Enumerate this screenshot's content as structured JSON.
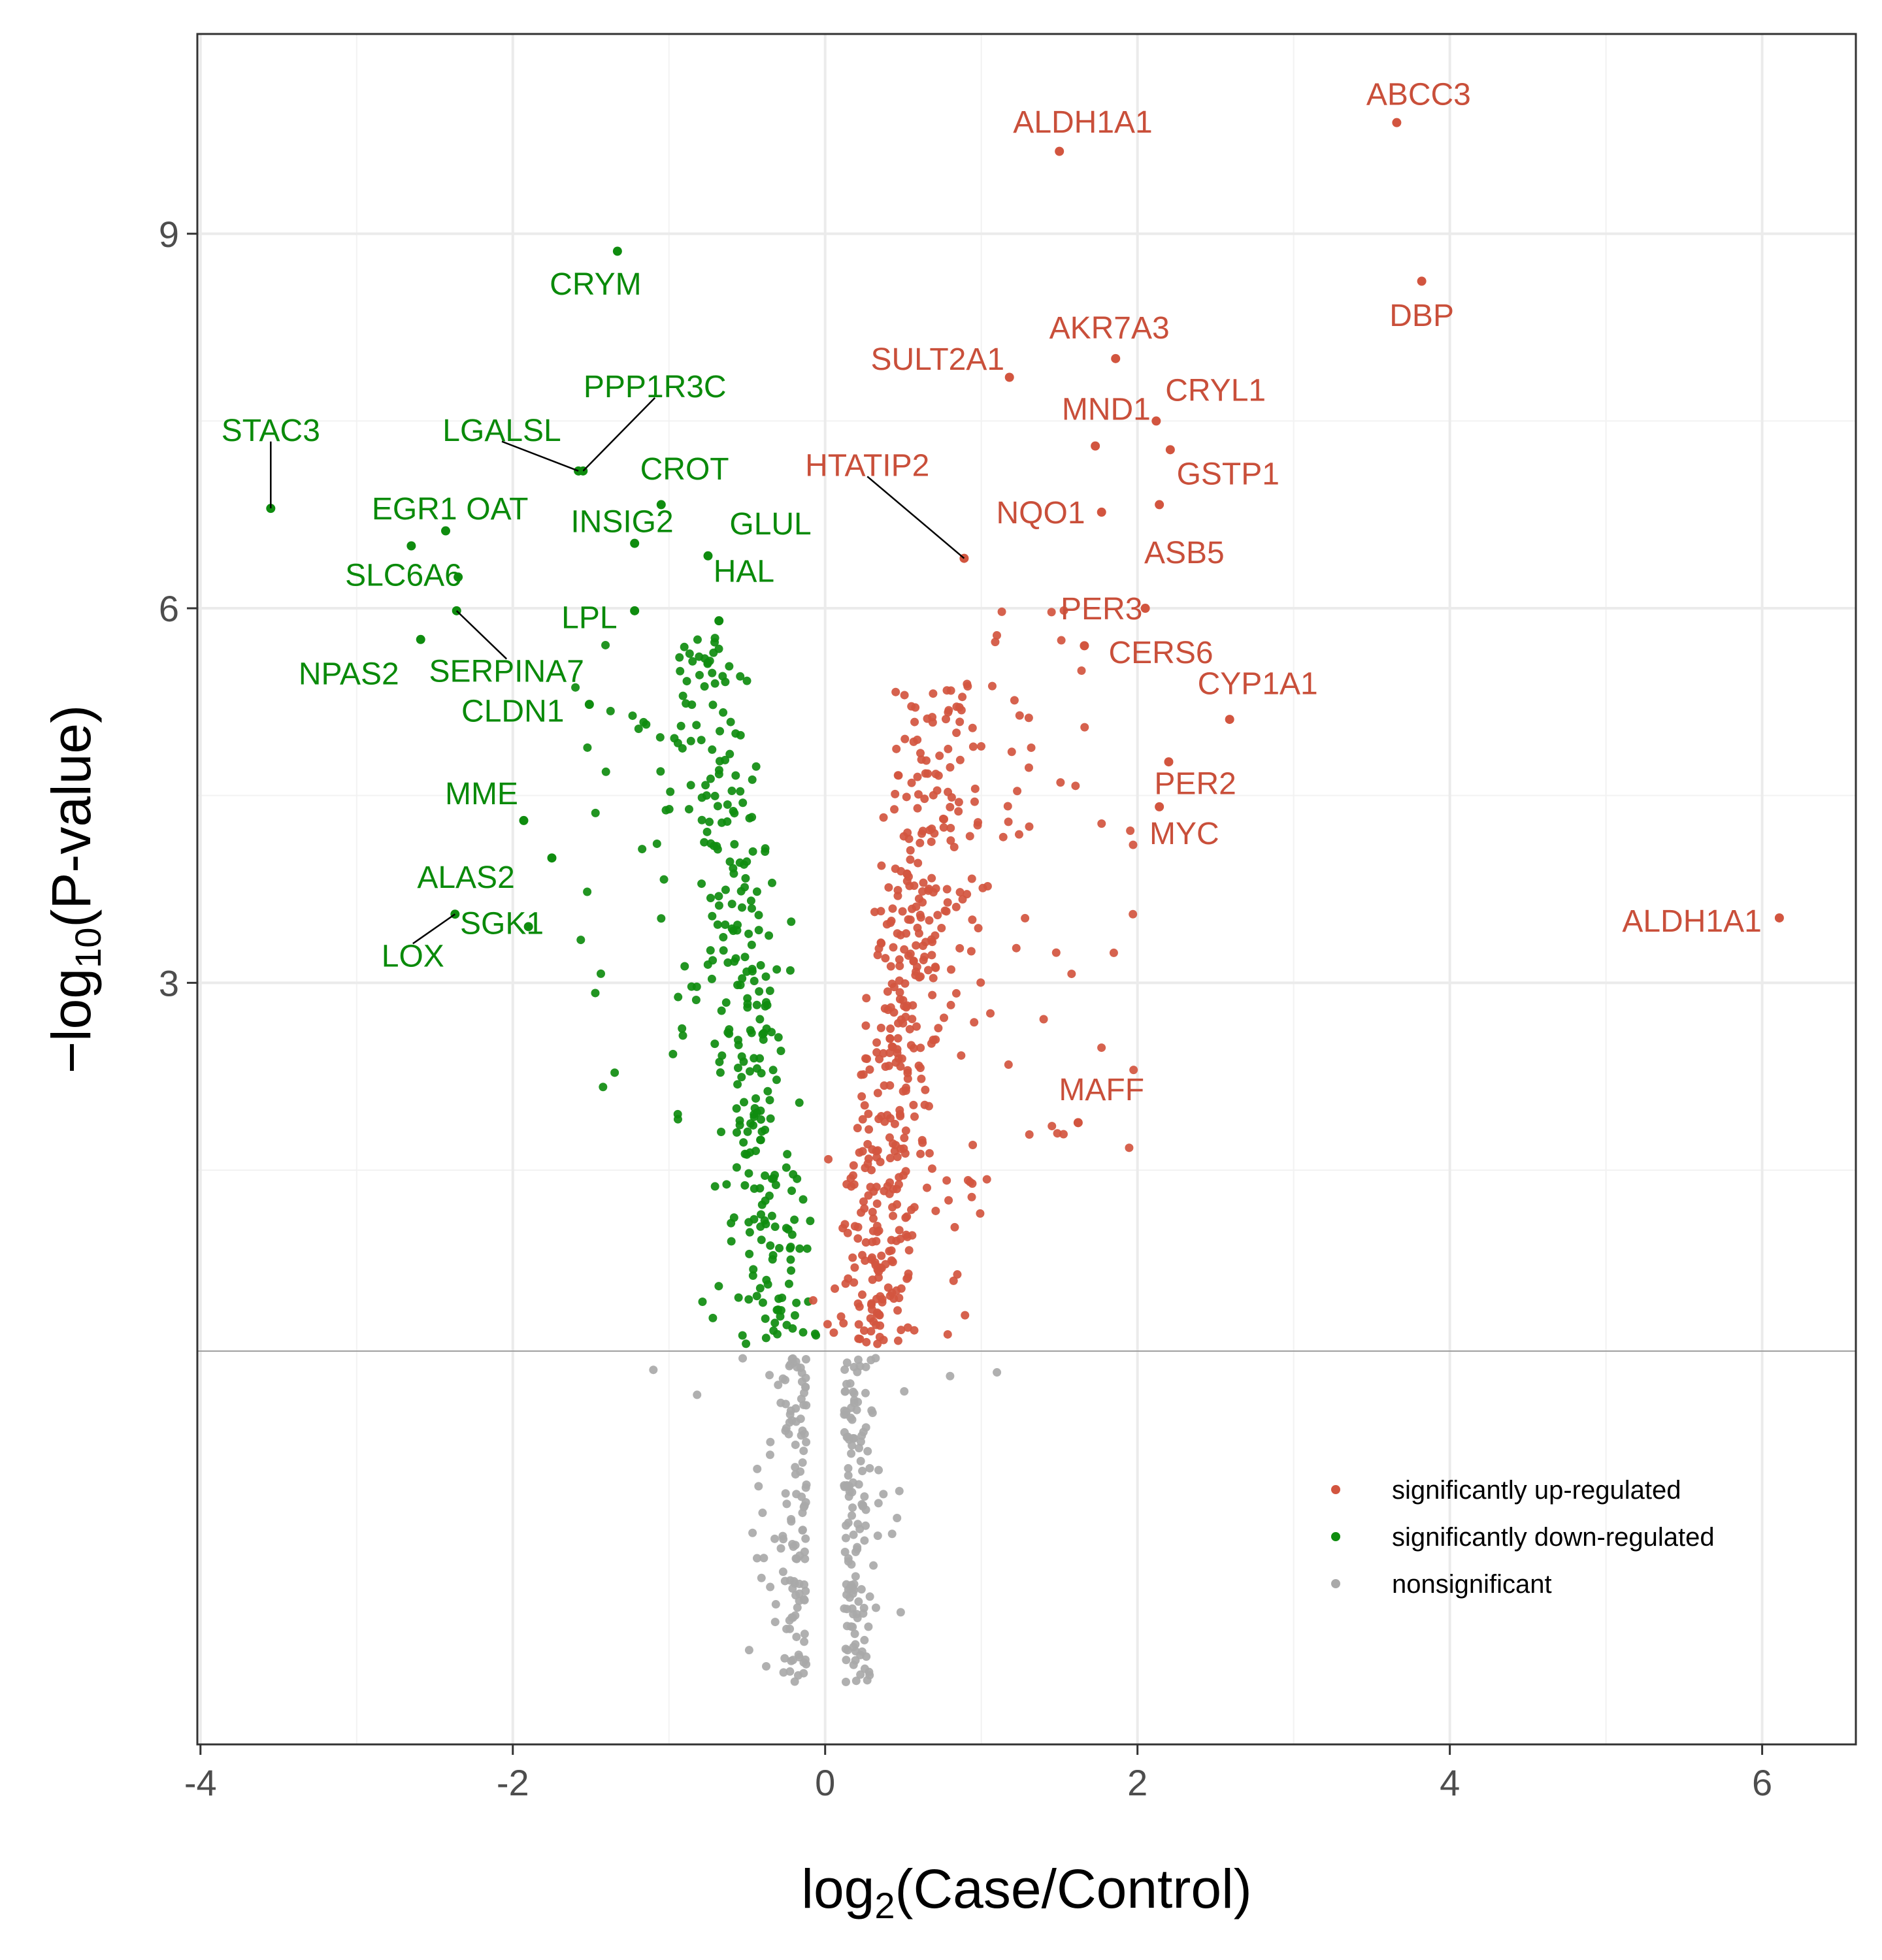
{
  "colors": {
    "up": "#D2553F",
    "down": "#0F8C0F",
    "ns": "#A9A9A9",
    "label_up": "#C94F3A",
    "label_down": "#0A8A0A",
    "grid_major": "#EBEBEB",
    "grid_minor": "#F2F2F2",
    "threshold": "#A0A0A0",
    "panel_border": "#333333"
  },
  "chart_data": {
    "type": "scatter",
    "xlabel_prefix": "log",
    "xlabel_sub": "2",
    "xlabel_rest": "(Case/Control)",
    "ylabel_prefix": "−log",
    "ylabel_sub": "10",
    "ylabel_rest": "(P-value)",
    "xlim": [
      -4.02,
      6.6
    ],
    "ylim": [
      -3.1,
      10.6
    ],
    "x_ticks": [
      -4,
      -2,
      0,
      2,
      4,
      6
    ],
    "x_tick_labels": [
      "-4",
      "-2",
      "0",
      "2",
      "4",
      "6"
    ],
    "y_ticks": [
      3,
      6,
      9
    ],
    "y_tick_labels": [
      "3",
      "6",
      "9"
    ],
    "grid": true,
    "threshold_y": 0.05,
    "legend_position": "bottom-right",
    "legend": [
      {
        "key": "up",
        "label": "significantly up-regulated"
      },
      {
        "key": "down",
        "label": "significantly down-regulated"
      },
      {
        "key": "ns",
        "label": "nonsignificant"
      }
    ],
    "labeled_points": [
      {
        "gene": "ABCC3",
        "x": 3.66,
        "y": 9.89,
        "group": "up",
        "lx": 3.8,
        "ly": 10.12
      },
      {
        "gene": "ALDH1A1",
        "x": 1.5,
        "y": 9.66,
        "group": "up",
        "lx": 1.65,
        "ly": 9.9
      },
      {
        "gene": "DBP",
        "x": 3.82,
        "y": 8.62,
        "group": "up",
        "lx": 3.82,
        "ly": 8.35
      },
      {
        "gene": "AKR7A3",
        "x": 1.86,
        "y": 8.0,
        "group": "up",
        "lx": 1.82,
        "ly": 8.25
      },
      {
        "gene": "SULT2A1",
        "x": 1.18,
        "y": 7.85,
        "group": "up",
        "lx": 0.72,
        "ly": 8.0
      },
      {
        "gene": "MND1",
        "x": 1.73,
        "y": 7.3,
        "group": "up",
        "lx": 1.8,
        "ly": 7.6
      },
      {
        "gene": "CRYL1",
        "x": 2.12,
        "y": 7.5,
        "group": "up",
        "lx": 2.5,
        "ly": 7.75
      },
      {
        "gene": "GSTP1",
        "x": 2.21,
        "y": 7.27,
        "group": "up",
        "lx": 2.58,
        "ly": 7.08
      },
      {
        "gene": "HTATIP2",
        "x": 0.89,
        "y": 6.4,
        "group": "up",
        "lx": 0.27,
        "ly": 7.15,
        "leader": true
      },
      {
        "gene": "NQO1",
        "x": 1.77,
        "y": 6.77,
        "group": "up",
        "lx": 1.38,
        "ly": 6.77
      },
      {
        "gene": "ASB5",
        "x": 2.14,
        "y": 6.83,
        "group": "up",
        "lx": 2.3,
        "ly": 6.45
      },
      {
        "gene": "PER3",
        "x": 2.05,
        "y": 6.0,
        "group": "up",
        "lx": 1.77,
        "ly": 6.0
      },
      {
        "gene": "CERS6",
        "x": 1.66,
        "y": 5.7,
        "group": "up",
        "lx": 2.15,
        "ly": 5.65
      },
      {
        "gene": "CYP1A1",
        "x": 2.59,
        "y": 5.11,
        "group": "up",
        "lx": 2.77,
        "ly": 5.4
      },
      {
        "gene": "PER2",
        "x": 2.2,
        "y": 4.77,
        "group": "up",
        "lx": 2.37,
        "ly": 4.6
      },
      {
        "gene": "MYC",
        "x": 2.14,
        "y": 4.41,
        "group": "up",
        "lx": 2.3,
        "ly": 4.2
      },
      {
        "gene": "ALDH1A1",
        "x": 6.11,
        "y": 3.52,
        "group": "up",
        "lx": 5.55,
        "ly": 3.5
      },
      {
        "gene": "MAFF",
        "x": 1.62,
        "y": 1.88,
        "group": "up",
        "lx": 1.77,
        "ly": 2.15
      },
      {
        "gene": "CRYM",
        "x": -1.33,
        "y": 8.86,
        "group": "down",
        "lx": -1.47,
        "ly": 8.6
      },
      {
        "gene": "PPP1R3C",
        "x": -1.55,
        "y": 7.1,
        "group": "down",
        "lx": -1.09,
        "ly": 7.78,
        "leader": true
      },
      {
        "gene": "LGALSL",
        "x": -1.58,
        "y": 7.1,
        "group": "down",
        "lx": -2.07,
        "ly": 7.43,
        "leader": true
      },
      {
        "gene": "CROT",
        "x": -1.05,
        "y": 6.83,
        "group": "down",
        "lx": -0.9,
        "ly": 7.12
      },
      {
        "gene": "STAC3",
        "x": -3.55,
        "y": 6.8,
        "group": "down",
        "lx": -3.55,
        "ly": 7.43,
        "leader": true
      },
      {
        "gene": "EGR1",
        "x": -2.65,
        "y": 6.5,
        "group": "down",
        "lx": -2.63,
        "ly": 6.8
      },
      {
        "gene": "OAT",
        "x": -2.43,
        "y": 6.62,
        "group": "down",
        "lx": -2.1,
        "ly": 6.8
      },
      {
        "gene": "INSIG2",
        "x": -1.22,
        "y": 6.52,
        "group": "down",
        "lx": -1.3,
        "ly": 6.7
      },
      {
        "gene": "GLUL",
        "x": -0.75,
        "y": 6.42,
        "group": "down",
        "lx": -0.35,
        "ly": 6.68
      },
      {
        "gene": "SLC6A6",
        "x": -2.35,
        "y": 6.25,
        "group": "down",
        "lx": -2.7,
        "ly": 6.27
      },
      {
        "gene": "HAL",
        "x": -0.68,
        "y": 5.9,
        "group": "down",
        "lx": -0.52,
        "ly": 6.3
      },
      {
        "gene": "LPL",
        "x": -1.22,
        "y": 5.98,
        "group": "down",
        "lx": -1.51,
        "ly": 5.93
      },
      {
        "gene": "NPAS2",
        "x": -2.59,
        "y": 5.75,
        "group": "down",
        "lx": -3.05,
        "ly": 5.48
      },
      {
        "gene": "SERPINA7",
        "x": -2.36,
        "y": 5.98,
        "group": "down",
        "lx": -2.04,
        "ly": 5.5,
        "leader": true
      },
      {
        "gene": "CLDN1",
        "x": -1.51,
        "y": 5.23,
        "group": "down",
        "lx": -2.0,
        "ly": 5.18
      },
      {
        "gene": "MME",
        "x": -1.93,
        "y": 4.3,
        "group": "down",
        "lx": -2.2,
        "ly": 4.52
      },
      {
        "gene": "ALAS2",
        "x": -1.75,
        "y": 4.0,
        "group": "down",
        "lx": -2.3,
        "ly": 3.85
      },
      {
        "gene": "SGK1",
        "x": -1.9,
        "y": 3.45,
        "group": "down",
        "lx": -2.07,
        "ly": 3.48
      },
      {
        "gene": "LOX",
        "x": -2.37,
        "y": 3.55,
        "group": "down",
        "lx": -2.64,
        "ly": 3.22,
        "leader": true
      }
    ],
    "points": {
      "up": [],
      "down": [],
      "ns": []
    },
    "generator": "dense cloud reproduced procedurally from the visible distribution"
  }
}
